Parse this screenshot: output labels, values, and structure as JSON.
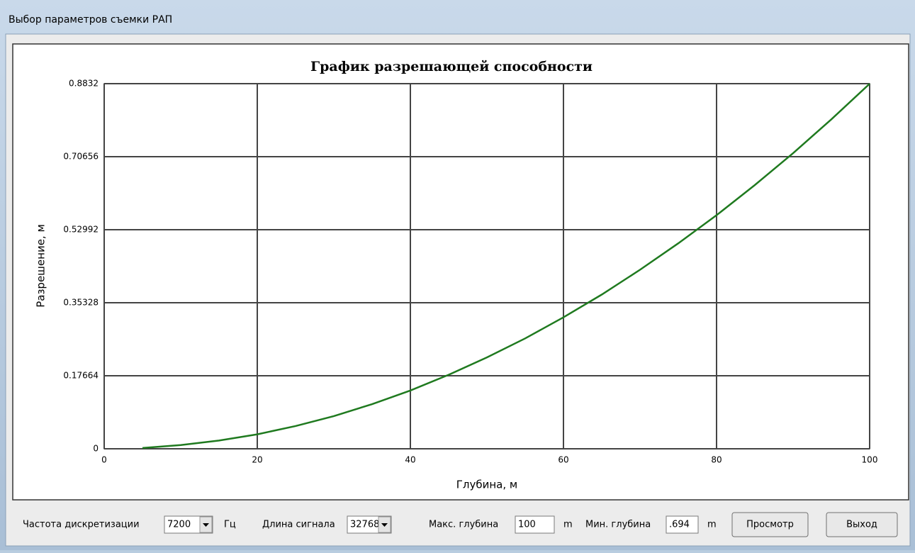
{
  "window": {
    "title": "Выбор параметров съемки РАП"
  },
  "chart_data": {
    "type": "line",
    "title": "График разрешающей способности",
    "x_label": "Глубина, м",
    "y_label": "Разрешение, м",
    "x": [
      5,
      10,
      15,
      20,
      25,
      30,
      35,
      40,
      45,
      50,
      55,
      60,
      65,
      70,
      75,
      80,
      85,
      90,
      95,
      100
    ],
    "values": [
      0.002,
      0.009,
      0.02,
      0.035,
      0.055,
      0.079,
      0.108,
      0.141,
      0.179,
      0.221,
      0.267,
      0.318,
      0.373,
      0.433,
      0.497,
      0.565,
      0.638,
      0.715,
      0.797,
      0.883
    ],
    "color": "#1f7a1f",
    "xlim": [
      0,
      100
    ],
    "xticks": [
      0,
      20,
      40,
      60,
      80,
      100
    ],
    "ylim": [
      0,
      0.8832
    ],
    "yticks": [
      0,
      0.17664,
      0.35328,
      0.52992,
      0.70656,
      0.8832
    ],
    "grid": true
  },
  "controls": {
    "sample_rate": {
      "label": "Частота дискретизации",
      "value": "7200",
      "unit": "Гц"
    },
    "signal_length": {
      "label": "Длина сигнала",
      "value": "32768"
    },
    "max_depth": {
      "label": "Макс. глубина",
      "value": "100",
      "unit": "m"
    },
    "min_depth": {
      "label": "Мин. глубина",
      "value": ".694",
      "unit": "m"
    },
    "buttons": [
      "Просмотр",
      "Выход"
    ]
  }
}
